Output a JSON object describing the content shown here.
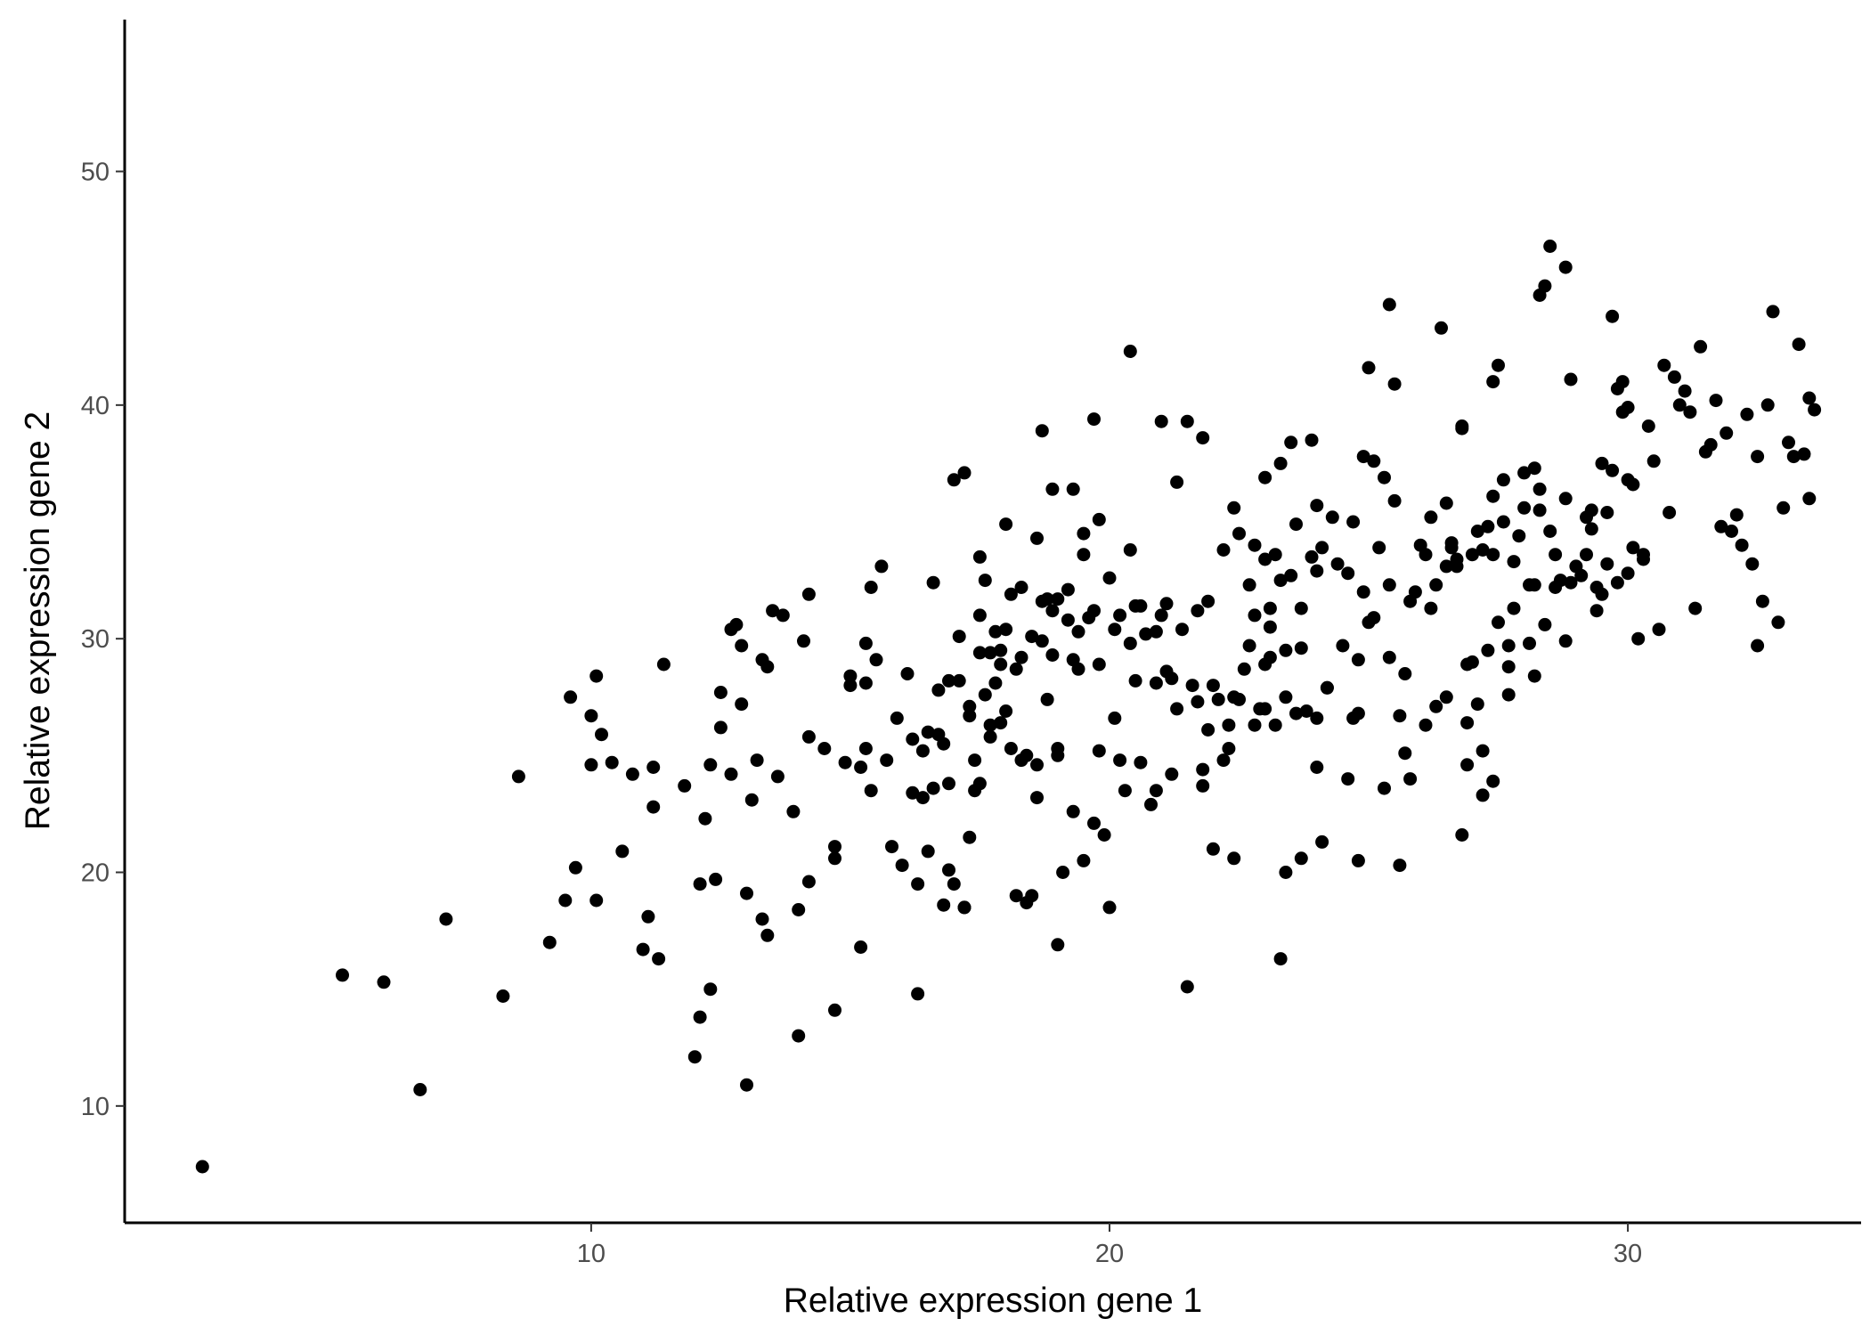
{
  "chart_data": {
    "type": "scatter",
    "xlabel": "Relative expression gene 1",
    "ylabel": "Relative expression gene 2",
    "xlim": [
      1.0,
      34.5
    ],
    "ylim": [
      5.0,
      56.5
    ],
    "xticks": [
      10,
      20,
      30
    ],
    "yticks": [
      10,
      20,
      30,
      40,
      50
    ],
    "grid": false,
    "legend": "none",
    "point_color": "#000000",
    "points": [
      [
        2.5,
        7.4
      ],
      [
        5.2,
        15.6
      ],
      [
        6.0,
        15.3
      ],
      [
        6.7,
        10.7
      ],
      [
        7.2,
        18.0
      ],
      [
        8.3,
        14.7
      ],
      [
        8.6,
        24.1
      ],
      [
        9.2,
        17.0
      ],
      [
        9.5,
        18.8
      ],
      [
        9.6,
        27.5
      ],
      [
        9.7,
        20.2
      ],
      [
        10.0,
        26.7
      ],
      [
        10.0,
        24.6
      ],
      [
        10.1,
        28.4
      ],
      [
        10.1,
        18.8
      ],
      [
        10.2,
        25.9
      ],
      [
        10.4,
        24.7
      ],
      [
        10.6,
        20.9
      ],
      [
        10.8,
        24.2
      ],
      [
        11.0,
        16.7
      ],
      [
        11.1,
        18.1
      ],
      [
        11.2,
        24.5
      ],
      [
        11.2,
        22.8
      ],
      [
        11.3,
        16.3
      ],
      [
        11.4,
        28.9
      ],
      [
        11.8,
        23.7
      ],
      [
        12.0,
        12.1
      ],
      [
        12.1,
        19.5
      ],
      [
        12.1,
        13.8
      ],
      [
        12.2,
        22.3
      ],
      [
        12.3,
        15.0
      ],
      [
        12.3,
        24.6
      ],
      [
        12.4,
        19.7
      ],
      [
        12.5,
        26.2
      ],
      [
        12.5,
        27.7
      ],
      [
        12.7,
        24.2
      ],
      [
        12.7,
        30.4
      ],
      [
        12.8,
        30.6
      ],
      [
        12.9,
        29.7
      ],
      [
        12.9,
        27.2
      ],
      [
        13.0,
        19.1
      ],
      [
        13.0,
        10.9
      ],
      [
        13.1,
        23.1
      ],
      [
        13.2,
        24.8
      ],
      [
        13.3,
        29.1
      ],
      [
        13.3,
        18.0
      ],
      [
        13.4,
        17.3
      ],
      [
        13.4,
        28.8
      ],
      [
        13.5,
        31.2
      ],
      [
        13.6,
        24.1
      ],
      [
        13.7,
        31.0
      ],
      [
        13.9,
        22.6
      ],
      [
        14.0,
        18.4
      ],
      [
        14.0,
        13.0
      ],
      [
        14.1,
        29.9
      ],
      [
        14.2,
        31.9
      ],
      [
        14.2,
        25.8
      ],
      [
        14.2,
        19.6
      ],
      [
        14.5,
        25.3
      ],
      [
        14.7,
        21.1
      ],
      [
        14.7,
        20.6
      ],
      [
        14.7,
        14.1
      ],
      [
        14.9,
        24.7
      ],
      [
        15.0,
        28.0
      ],
      [
        15.0,
        28.4
      ],
      [
        15.2,
        24.5
      ],
      [
        15.2,
        16.8
      ],
      [
        15.3,
        29.8
      ],
      [
        15.3,
        28.1
      ],
      [
        15.3,
        25.3
      ],
      [
        15.4,
        23.5
      ],
      [
        15.4,
        32.2
      ],
      [
        15.5,
        29.1
      ],
      [
        15.6,
        33.1
      ],
      [
        15.7,
        24.8
      ],
      [
        15.8,
        21.1
      ],
      [
        15.9,
        26.6
      ],
      [
        16.0,
        20.3
      ],
      [
        16.1,
        28.5
      ],
      [
        16.2,
        25.7
      ],
      [
        16.2,
        23.4
      ],
      [
        16.3,
        19.5
      ],
      [
        16.3,
        14.8
      ],
      [
        16.4,
        25.2
      ],
      [
        16.4,
        23.2
      ],
      [
        16.5,
        26.0
      ],
      [
        16.5,
        20.9
      ],
      [
        16.6,
        32.4
      ],
      [
        16.6,
        23.6
      ],
      [
        16.7,
        27.8
      ],
      [
        16.7,
        25.9
      ],
      [
        16.8,
        25.5
      ],
      [
        16.8,
        18.6
      ],
      [
        16.9,
        23.8
      ],
      [
        16.9,
        20.1
      ],
      [
        16.9,
        28.2
      ],
      [
        17.0,
        36.8
      ],
      [
        17.0,
        19.5
      ],
      [
        17.1,
        30.1
      ],
      [
        17.1,
        28.2
      ],
      [
        17.2,
        37.1
      ],
      [
        17.2,
        18.5
      ],
      [
        17.2,
        18.5
      ],
      [
        17.3,
        27.1
      ],
      [
        17.3,
        26.7
      ],
      [
        17.3,
        21.5
      ],
      [
        17.4,
        24.8
      ],
      [
        17.4,
        23.5
      ],
      [
        17.5,
        29.4
      ],
      [
        17.5,
        23.8
      ],
      [
        17.5,
        33.5
      ],
      [
        17.5,
        31.0
      ],
      [
        17.6,
        27.6
      ],
      [
        17.6,
        32.5
      ],
      [
        17.7,
        26.3
      ],
      [
        17.7,
        29.4
      ],
      [
        17.7,
        25.8
      ],
      [
        17.8,
        28.1
      ],
      [
        17.8,
        30.3
      ],
      [
        17.9,
        28.9
      ],
      [
        17.9,
        29.5
      ],
      [
        17.9,
        26.4
      ],
      [
        18.0,
        26.9
      ],
      [
        18.0,
        30.4
      ],
      [
        18.0,
        34.9
      ],
      [
        18.1,
        25.3
      ],
      [
        18.1,
        31.9
      ],
      [
        18.2,
        28.7
      ],
      [
        18.2,
        19.0
      ],
      [
        18.3,
        29.2
      ],
      [
        18.3,
        24.8
      ],
      [
        18.3,
        32.2
      ],
      [
        18.4,
        25.0
      ],
      [
        18.4,
        18.7
      ],
      [
        18.5,
        30.1
      ],
      [
        18.5,
        19.0
      ],
      [
        18.6,
        23.2
      ],
      [
        18.6,
        24.6
      ],
      [
        18.6,
        34.3
      ],
      [
        18.7,
        38.9
      ],
      [
        18.7,
        29.9
      ],
      [
        18.7,
        31.6
      ],
      [
        18.8,
        27.4
      ],
      [
        18.8,
        31.7
      ],
      [
        18.9,
        36.4
      ],
      [
        18.9,
        29.3
      ],
      [
        18.9,
        31.2
      ],
      [
        19.0,
        25.3
      ],
      [
        19.0,
        25.0
      ],
      [
        19.0,
        31.7
      ],
      [
        19.0,
        16.9
      ],
      [
        19.1,
        20.0
      ],
      [
        19.2,
        32.1
      ],
      [
        19.2,
        30.8
      ],
      [
        19.3,
        36.4
      ],
      [
        19.3,
        29.1
      ],
      [
        19.3,
        22.6
      ],
      [
        19.4,
        28.7
      ],
      [
        19.4,
        30.3
      ],
      [
        19.5,
        20.5
      ],
      [
        19.5,
        34.5
      ],
      [
        19.5,
        33.6
      ],
      [
        19.6,
        30.9
      ],
      [
        19.7,
        39.4
      ],
      [
        19.7,
        31.2
      ],
      [
        19.7,
        22.1
      ],
      [
        19.8,
        28.9
      ],
      [
        19.8,
        25.2
      ],
      [
        19.8,
        35.1
      ],
      [
        19.9,
        21.6
      ],
      [
        20.0,
        18.5
      ],
      [
        20.0,
        32.6
      ],
      [
        20.1,
        26.6
      ],
      [
        20.1,
        30.4
      ],
      [
        20.2,
        31.0
      ],
      [
        20.2,
        24.8
      ],
      [
        20.3,
        23.5
      ],
      [
        20.4,
        42.3
      ],
      [
        20.4,
        29.8
      ],
      [
        20.4,
        33.8
      ],
      [
        20.5,
        31.4
      ],
      [
        20.5,
        28.2
      ],
      [
        20.6,
        31.4
      ],
      [
        20.6,
        24.7
      ],
      [
        20.7,
        30.2
      ],
      [
        20.8,
        22.9
      ],
      [
        20.9,
        28.1
      ],
      [
        20.9,
        23.5
      ],
      [
        20.9,
        30.3
      ],
      [
        21.0,
        39.3
      ],
      [
        21.0,
        31.0
      ],
      [
        21.1,
        28.6
      ],
      [
        21.1,
        31.5
      ],
      [
        21.2,
        28.3
      ],
      [
        21.2,
        24.2
      ],
      [
        21.3,
        27.0
      ],
      [
        21.3,
        36.7
      ],
      [
        21.4,
        30.4
      ],
      [
        21.5,
        15.1
      ],
      [
        21.5,
        39.3
      ],
      [
        21.6,
        28.0
      ],
      [
        21.7,
        27.3
      ],
      [
        21.7,
        31.2
      ],
      [
        21.8,
        38.6
      ],
      [
        21.8,
        23.7
      ],
      [
        21.8,
        24.4
      ],
      [
        21.9,
        26.1
      ],
      [
        21.9,
        31.6
      ],
      [
        22.0,
        28.0
      ],
      [
        22.0,
        21.0
      ],
      [
        22.1,
        27.4
      ],
      [
        22.2,
        24.8
      ],
      [
        22.2,
        33.8
      ],
      [
        22.3,
        25.3
      ],
      [
        22.3,
        26.3
      ],
      [
        22.4,
        27.5
      ],
      [
        22.4,
        20.6
      ],
      [
        22.4,
        35.6
      ],
      [
        22.5,
        27.4
      ],
      [
        22.5,
        34.5
      ],
      [
        22.6,
        28.7
      ],
      [
        22.7,
        29.7
      ],
      [
        22.7,
        32.3
      ],
      [
        22.8,
        31.0
      ],
      [
        22.8,
        34.0
      ],
      [
        22.8,
        26.3
      ],
      [
        22.9,
        27.0
      ],
      [
        23.0,
        36.9
      ],
      [
        23.0,
        28.9
      ],
      [
        23.0,
        33.4
      ],
      [
        23.0,
        27.0
      ],
      [
        23.1,
        29.2
      ],
      [
        23.1,
        31.3
      ],
      [
        23.1,
        30.5
      ],
      [
        23.2,
        33.6
      ],
      [
        23.2,
        26.3
      ],
      [
        23.3,
        32.5
      ],
      [
        23.3,
        37.5
      ],
      [
        23.3,
        16.3
      ],
      [
        23.4,
        27.5
      ],
      [
        23.4,
        20.0
      ],
      [
        23.4,
        29.5
      ],
      [
        23.5,
        38.4
      ],
      [
        23.5,
        32.7
      ],
      [
        23.6,
        26.8
      ],
      [
        23.6,
        34.9
      ],
      [
        23.7,
        29.6
      ],
      [
        23.7,
        20.6
      ],
      [
        23.7,
        31.3
      ],
      [
        23.8,
        26.9
      ],
      [
        23.9,
        38.5
      ],
      [
        23.9,
        33.5
      ],
      [
        24.0,
        26.6
      ],
      [
        24.0,
        32.9
      ],
      [
        24.0,
        24.5
      ],
      [
        24.0,
        35.7
      ],
      [
        24.1,
        21.3
      ],
      [
        24.1,
        33.9
      ],
      [
        24.2,
        27.9
      ],
      [
        24.2,
        27.9
      ],
      [
        24.3,
        35.2
      ],
      [
        24.4,
        33.2
      ],
      [
        24.5,
        29.7
      ],
      [
        24.6,
        32.8
      ],
      [
        24.6,
        24.0
      ],
      [
        24.7,
        35.0
      ],
      [
        24.7,
        26.6
      ],
      [
        24.8,
        20.5
      ],
      [
        24.8,
        29.1
      ],
      [
        24.8,
        26.8
      ],
      [
        24.9,
        32.0
      ],
      [
        24.9,
        37.8
      ],
      [
        25.0,
        41.6
      ],
      [
        25.0,
        30.7
      ],
      [
        25.1,
        37.6
      ],
      [
        25.1,
        30.9
      ],
      [
        25.2,
        33.9
      ],
      [
        25.3,
        23.6
      ],
      [
        25.3,
        36.9
      ],
      [
        25.4,
        29.2
      ],
      [
        25.4,
        44.3
      ],
      [
        25.4,
        32.3
      ],
      [
        25.5,
        40.9
      ],
      [
        25.5,
        35.9
      ],
      [
        25.6,
        20.3
      ],
      [
        25.6,
        26.7
      ],
      [
        25.7,
        25.1
      ],
      [
        25.7,
        28.5
      ],
      [
        25.8,
        31.6
      ],
      [
        25.8,
        24.0
      ],
      [
        25.9,
        32.0
      ],
      [
        26.0,
        34.0
      ],
      [
        26.1,
        33.6
      ],
      [
        26.1,
        26.3
      ],
      [
        26.2,
        31.3
      ],
      [
        26.2,
        35.2
      ],
      [
        26.3,
        32.3
      ],
      [
        26.3,
        27.1
      ],
      [
        26.4,
        43.3
      ],
      [
        26.5,
        33.1
      ],
      [
        26.5,
        27.5
      ],
      [
        26.5,
        35.8
      ],
      [
        26.6,
        34.1
      ],
      [
        26.6,
        33.9
      ],
      [
        26.7,
        33.4
      ],
      [
        26.7,
        33.1
      ],
      [
        26.8,
        39.0
      ],
      [
        26.8,
        39.1
      ],
      [
        26.8,
        21.6
      ],
      [
        26.9,
        26.4
      ],
      [
        26.9,
        24.6
      ],
      [
        26.9,
        28.9
      ],
      [
        27.0,
        33.6
      ],
      [
        27.0,
        29.0
      ],
      [
        27.1,
        34.6
      ],
      [
        27.1,
        27.2
      ],
      [
        27.2,
        25.2
      ],
      [
        27.2,
        23.3
      ],
      [
        27.2,
        33.8
      ],
      [
        27.3,
        34.8
      ],
      [
        27.3,
        29.5
      ],
      [
        27.4,
        23.9
      ],
      [
        27.4,
        36.1
      ],
      [
        27.4,
        41.0
      ],
      [
        27.4,
        33.6
      ],
      [
        27.5,
        41.7
      ],
      [
        27.5,
        30.7
      ],
      [
        27.6,
        36.8
      ],
      [
        27.6,
        35.0
      ],
      [
        27.7,
        27.6
      ],
      [
        27.7,
        28.8
      ],
      [
        27.7,
        29.7
      ],
      [
        27.8,
        31.3
      ],
      [
        27.8,
        33.3
      ],
      [
        27.9,
        34.4
      ],
      [
        28.0,
        37.1
      ],
      [
        28.0,
        35.6
      ],
      [
        28.1,
        29.8
      ],
      [
        28.1,
        32.3
      ],
      [
        28.2,
        32.3
      ],
      [
        28.2,
        28.4
      ],
      [
        28.2,
        37.3
      ],
      [
        28.3,
        35.5
      ],
      [
        28.3,
        36.4
      ],
      [
        28.3,
        44.7
      ],
      [
        28.4,
        45.1
      ],
      [
        28.4,
        30.6
      ],
      [
        28.5,
        46.8
      ],
      [
        28.5,
        34.6
      ],
      [
        28.6,
        33.6
      ],
      [
        28.6,
        32.2
      ],
      [
        28.7,
        32.5
      ],
      [
        28.8,
        36.0
      ],
      [
        28.8,
        29.9
      ],
      [
        28.8,
        45.9
      ],
      [
        28.9,
        32.4
      ],
      [
        28.9,
        41.1
      ],
      [
        29.0,
        33.1
      ],
      [
        29.1,
        32.7
      ],
      [
        29.2,
        35.2
      ],
      [
        29.2,
        33.6
      ],
      [
        29.3,
        35.5
      ],
      [
        29.3,
        34.7
      ],
      [
        29.4,
        32.2
      ],
      [
        29.4,
        31.2
      ],
      [
        29.5,
        37.5
      ],
      [
        29.5,
        31.9
      ],
      [
        29.6,
        35.4
      ],
      [
        29.6,
        33.2
      ],
      [
        29.7,
        43.8
      ],
      [
        29.7,
        37.2
      ],
      [
        29.8,
        40.7
      ],
      [
        29.8,
        32.4
      ],
      [
        29.9,
        41.0
      ],
      [
        29.9,
        39.7
      ],
      [
        30.0,
        39.9
      ],
      [
        30.0,
        36.8
      ],
      [
        30.0,
        32.8
      ],
      [
        30.1,
        33.9
      ],
      [
        30.1,
        36.6
      ],
      [
        30.2,
        30.0
      ],
      [
        30.3,
        33.6
      ],
      [
        30.3,
        33.4
      ],
      [
        30.4,
        39.1
      ],
      [
        30.5,
        37.6
      ],
      [
        30.6,
        30.4
      ],
      [
        30.7,
        41.7
      ],
      [
        30.8,
        35.4
      ],
      [
        30.9,
        41.2
      ],
      [
        31.0,
        40.0
      ],
      [
        31.1,
        40.6
      ],
      [
        31.2,
        39.7
      ],
      [
        31.3,
        31.3
      ],
      [
        31.4,
        42.5
      ],
      [
        31.5,
        38.0
      ],
      [
        31.6,
        38.3
      ],
      [
        31.7,
        40.2
      ],
      [
        31.8,
        34.8
      ],
      [
        31.9,
        38.8
      ],
      [
        32.0,
        34.6
      ],
      [
        32.1,
        35.3
      ],
      [
        32.2,
        34.0
      ],
      [
        32.3,
        39.6
      ],
      [
        32.4,
        33.2
      ],
      [
        32.5,
        37.8
      ],
      [
        32.5,
        29.7
      ],
      [
        32.6,
        31.6
      ],
      [
        32.7,
        40.0
      ],
      [
        32.8,
        44.0
      ],
      [
        32.9,
        30.7
      ],
      [
        33.0,
        35.6
      ],
      [
        33.1,
        38.4
      ],
      [
        33.2,
        37.8
      ],
      [
        33.3,
        42.6
      ],
      [
        33.4,
        37.9
      ],
      [
        33.5,
        40.3
      ],
      [
        33.5,
        36.0
      ],
      [
        33.6,
        39.8
      ]
    ]
  }
}
